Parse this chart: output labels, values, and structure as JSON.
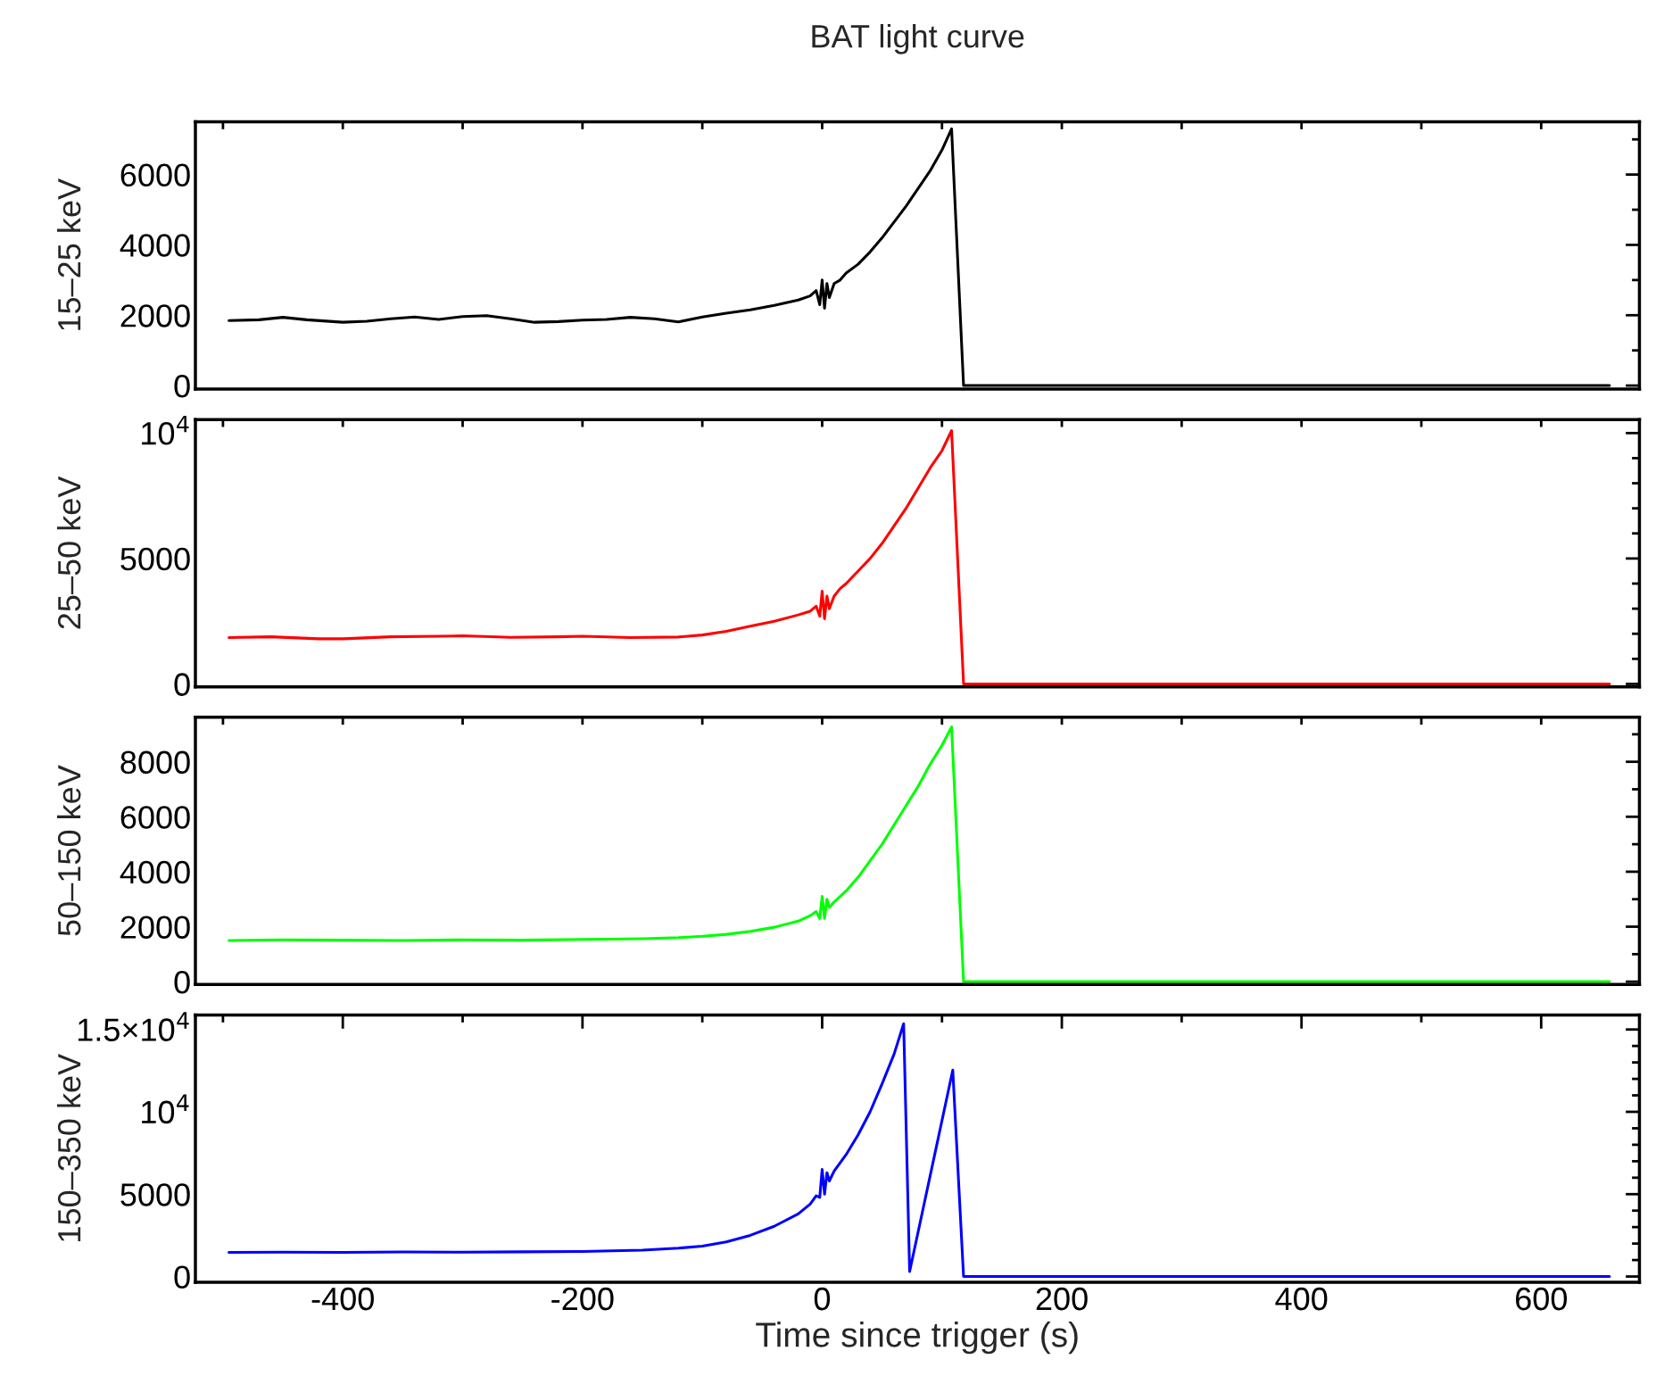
{
  "chart_data": [
    {
      "type": "line",
      "title": "BAT light curve",
      "ylabel": "15–25 keV",
      "grid": false,
      "tick_labels": "y",
      "xlim": [
        -523,
        682
      ],
      "xticks": [
        {
          "value": -500,
          "label": null
        },
        {
          "value": -400,
          "label": null
        },
        {
          "value": -300,
          "label": null
        },
        {
          "value": -200,
          "label": null
        },
        {
          "value": -100,
          "label": null
        },
        {
          "value": 0,
          "label": null
        },
        {
          "value": 100,
          "label": null
        },
        {
          "value": 200,
          "label": null
        },
        {
          "value": 300,
          "label": null
        },
        {
          "value": 400,
          "label": null
        },
        {
          "value": 500,
          "label": null
        },
        {
          "value": 600,
          "label": null
        }
      ],
      "ylim": [
        -100,
        7500
      ],
      "yticks": [
        0,
        {
          "value": 1000,
          "label": null
        },
        2000,
        {
          "value": 3000,
          "label": null
        },
        4000,
        {
          "value": 5000,
          "label": null
        },
        6000,
        {
          "value": 7000,
          "label": null
        }
      ],
      "series": [
        {
          "color": "#000000",
          "x": [
            -495,
            -470,
            -450,
            -430,
            -400,
            -380,
            -360,
            -340,
            -320,
            -300,
            -280,
            -260,
            -240,
            -220,
            -200,
            -180,
            -160,
            -140,
            -120,
            -100,
            -80,
            -60,
            -40,
            -20,
            -10,
            -5,
            -2,
            0,
            2,
            4,
            6,
            10,
            15,
            20,
            30,
            40,
            50,
            60,
            70,
            80,
            90,
            100,
            108,
            118,
            657
          ],
          "values": [
            1850,
            1870,
            1940,
            1870,
            1800,
            1830,
            1900,
            1950,
            1880,
            1960,
            1990,
            1900,
            1800,
            1820,
            1860,
            1880,
            1940,
            1900,
            1810,
            1950,
            2060,
            2150,
            2280,
            2430,
            2550,
            2700,
            2300,
            3000,
            2200,
            2900,
            2500,
            2900,
            3000,
            3200,
            3450,
            3800,
            4200,
            4650,
            5100,
            5600,
            6100,
            6700,
            7300,
            0,
            0
          ]
        }
      ]
    },
    {
      "type": "line",
      "ylabel": "25–50 keV",
      "grid": false,
      "tick_labels": "y",
      "xlim": [
        -523,
        682
      ],
      "xticks": [
        {
          "value": -500,
          "label": null
        },
        {
          "value": -400,
          "label": null
        },
        {
          "value": -300,
          "label": null
        },
        {
          "value": -200,
          "label": null
        },
        {
          "value": -100,
          "label": null
        },
        {
          "value": 0,
          "label": null
        },
        {
          "value": 100,
          "label": null
        },
        {
          "value": 200,
          "label": null
        },
        {
          "value": 300,
          "label": null
        },
        {
          "value": 400,
          "label": null
        },
        {
          "value": 500,
          "label": null
        },
        {
          "value": 600,
          "label": null
        }
      ],
      "ylim": [
        -115,
        10540
      ],
      "yticks": [
        0,
        {
          "value": 1000,
          "label": null
        },
        {
          "value": 2000,
          "label": null
        },
        {
          "value": 3000,
          "label": null
        },
        {
          "value": 4000,
          "label": null
        },
        5000,
        {
          "value": 6000,
          "label": null
        },
        {
          "value": 7000,
          "label": null
        },
        {
          "value": 8000,
          "label": null
        },
        {
          "value": 9000,
          "label": null
        },
        {
          "value": 10000,
          "label": "10$^{4}$"
        }
      ],
      "series": [
        {
          "color": "#ff0000",
          "x": [
            -495,
            -460,
            -420,
            -400,
            -360,
            -320,
            -300,
            -260,
            -220,
            -200,
            -160,
            -120,
            -100,
            -80,
            -60,
            -40,
            -20,
            -10,
            -5,
            -2,
            0,
            2,
            4,
            6,
            10,
            15,
            20,
            30,
            40,
            50,
            60,
            70,
            80,
            90,
            100,
            108,
            118,
            657
          ],
          "values": [
            1850,
            1880,
            1800,
            1800,
            1880,
            1900,
            1920,
            1860,
            1880,
            1900,
            1850,
            1870,
            1950,
            2100,
            2300,
            2500,
            2750,
            2900,
            3100,
            2700,
            3700,
            2600,
            3500,
            3000,
            3500,
            3800,
            4000,
            4500,
            5000,
            5600,
            6300,
            7000,
            7800,
            8600,
            9300,
            10100,
            0,
            0
          ]
        }
      ]
    },
    {
      "type": "line",
      "ylabel": "50–150 keV",
      "grid": false,
      "tick_labels": "y",
      "xlim": [
        -523,
        682
      ],
      "xticks": [
        {
          "value": -500,
          "label": null
        },
        {
          "value": -400,
          "label": null
        },
        {
          "value": -300,
          "label": null
        },
        {
          "value": -200,
          "label": null
        },
        {
          "value": -100,
          "label": null
        },
        {
          "value": 0,
          "label": null
        },
        {
          "value": 100,
          "label": null
        },
        {
          "value": 200,
          "label": null
        },
        {
          "value": 300,
          "label": null
        },
        {
          "value": 400,
          "label": null
        },
        {
          "value": 500,
          "label": null
        },
        {
          "value": 600,
          "label": null
        }
      ],
      "ylim": [
        -105,
        9620
      ],
      "yticks": [
        0,
        {
          "value": 1000,
          "label": null
        },
        2000,
        {
          "value": 3000,
          "label": null
        },
        4000,
        {
          "value": 5000,
          "label": null
        },
        6000,
        {
          "value": 7000,
          "label": null
        },
        8000,
        {
          "value": 9000,
          "label": null
        }
      ],
      "series": [
        {
          "color": "#00ff00",
          "x": [
            -495,
            -450,
            -400,
            -350,
            -300,
            -250,
            -200,
            -150,
            -120,
            -100,
            -80,
            -60,
            -40,
            -20,
            -10,
            -5,
            -2,
            0,
            2,
            4,
            6,
            10,
            15,
            20,
            30,
            40,
            50,
            60,
            70,
            80,
            90,
            100,
            108,
            118,
            657
          ],
          "values": [
            1500,
            1520,
            1510,
            1500,
            1520,
            1510,
            1540,
            1560,
            1600,
            1650,
            1720,
            1830,
            1980,
            2200,
            2400,
            2550,
            2300,
            3100,
            2300,
            3000,
            2700,
            2900,
            3100,
            3300,
            3800,
            4400,
            5000,
            5700,
            6400,
            7100,
            7900,
            8600,
            9270,
            0,
            0
          ]
        }
      ]
    },
    {
      "type": "line",
      "ylabel": "150–350 keV",
      "xlabel": "Time since trigger (s)",
      "grid": false,
      "xlim": [
        -523,
        682
      ],
      "xticks": [
        {
          "value": -500,
          "label": null
        },
        -400,
        {
          "value": -300,
          "label": null
        },
        -200,
        {
          "value": -100,
          "label": null
        },
        0,
        {
          "value": 100,
          "label": null
        },
        200,
        {
          "value": 300,
          "label": null
        },
        400,
        {
          "value": 500,
          "label": null
        },
        600
      ],
      "ylim": [
        -350,
        15880
      ],
      "yticks": [
        0,
        {
          "value": 1000,
          "label": null
        },
        {
          "value": 2000,
          "label": null
        },
        {
          "value": 3000,
          "label": null
        },
        {
          "value": 4000,
          "label": null
        },
        5000,
        {
          "value": 6000,
          "label": null
        },
        {
          "value": 7000,
          "label": null
        },
        {
          "value": 8000,
          "label": null
        },
        {
          "value": 9000,
          "label": null
        },
        {
          "value": 10000,
          "label": "10$^{4}$"
        },
        {
          "value": 11000,
          "label": null
        },
        {
          "value": 12000,
          "label": null
        },
        {
          "value": 13000,
          "label": null
        },
        {
          "value": 14000,
          "label": null
        },
        {
          "value": 15000,
          "label": "1.5×10$^{4}$"
        }
      ],
      "series": [
        {
          "color": "#0000ff",
          "x": [
            -495,
            -450,
            -400,
            -350,
            -300,
            -250,
            -200,
            -150,
            -120,
            -100,
            -80,
            -60,
            -40,
            -20,
            -10,
            -5,
            -2,
            0,
            2,
            4,
            6,
            10,
            15,
            20,
            30,
            40,
            50,
            60,
            68,
            73,
            109,
            118,
            657
          ],
          "values": [
            1470,
            1480,
            1470,
            1490,
            1480,
            1500,
            1520,
            1600,
            1720,
            1850,
            2100,
            2500,
            3050,
            3800,
            4400,
            4900,
            4800,
            6500,
            5000,
            6300,
            5800,
            6400,
            6900,
            7400,
            8600,
            10000,
            11700,
            13500,
            15350,
            300,
            12530,
            0,
            0
          ]
        }
      ]
    }
  ]
}
